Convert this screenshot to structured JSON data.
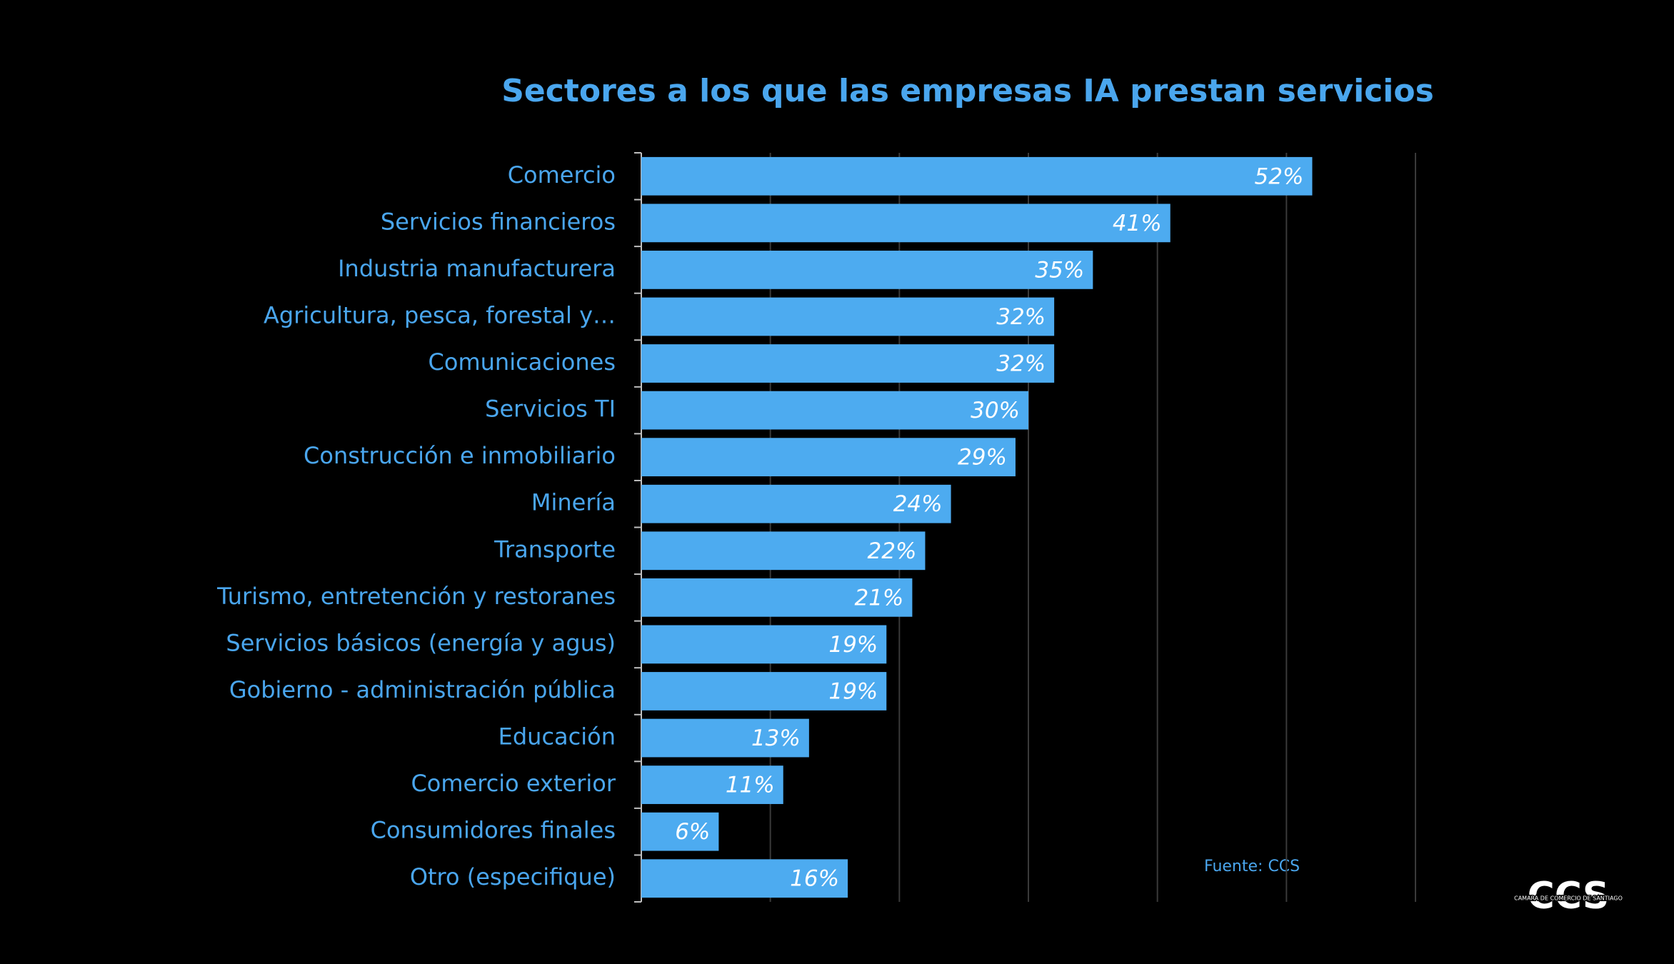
{
  "chart_data": {
    "type": "hbar",
    "title": "Sectores a los que las empresas IA prestan servicios",
    "categories": [
      "Comercio",
      "Servicios financieros",
      "Industria manufacturera",
      "Agricultura, pesca, forestal y…",
      "Comunicaciones",
      "Servicios TI",
      "Construcción e inmobiliario",
      "Minería",
      "Transporte",
      "Turismo, entretención y restoranes",
      "Servicios básicos (energía y agus)",
      "Gobierno - administración pública",
      "Educación",
      "Comercio exterior",
      "Consumidores finales",
      "Otro (especifique)"
    ],
    "values": [
      52,
      41,
      35,
      32,
      32,
      30,
      29,
      24,
      22,
      21,
      19,
      19,
      13,
      11,
      6,
      16
    ],
    "value_labels": [
      "52%",
      "41%",
      "35%",
      "32%",
      "32%",
      "30%",
      "29%",
      "24%",
      "22%",
      "21%",
      "19%",
      "19%",
      "13%",
      "11%",
      "6%",
      "16%"
    ],
    "color": "#4dabf0",
    "xlim": [
      0,
      60
    ],
    "xticks": [
      0,
      10,
      20,
      30,
      40,
      50,
      60
    ],
    "grid": true,
    "source": "Fuente: CCS",
    "logo": "CCS",
    "logo_subtitle": "CAMARA DE COMERCIO DE SANTIAGO"
  }
}
